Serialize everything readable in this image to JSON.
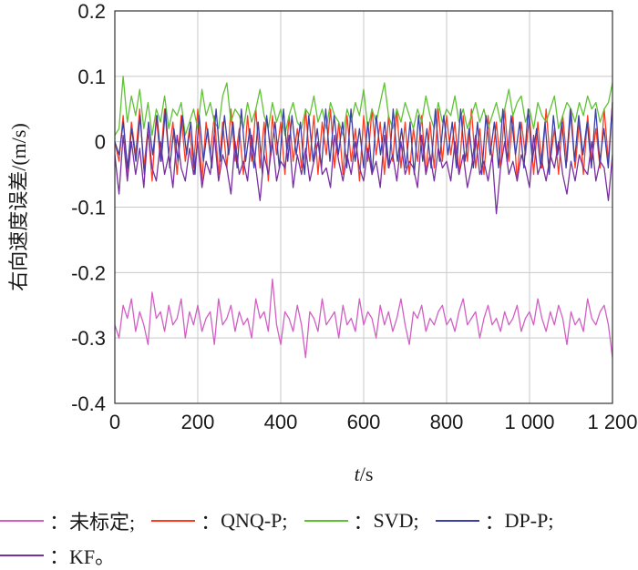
{
  "chart_data": {
    "type": "line",
    "xlabel_italic": "t",
    "xlabel_unit": "/s",
    "ylabel": "右向速度误差/(m/s)",
    "xlim": [
      0,
      1200
    ],
    "ylim": [
      -0.4,
      0.2
    ],
    "xticks": [
      0,
      200,
      400,
      600,
      800,
      1000,
      1200
    ],
    "xtick_labels": [
      "0",
      "200",
      "400",
      "600",
      "800",
      "1 000",
      "1 200"
    ],
    "yticks": [
      -0.4,
      -0.3,
      -0.2,
      -0.1,
      0,
      0.1,
      0.2
    ],
    "ytick_labels": [
      "-0.4",
      "-0.3",
      "-0.2",
      "-0.1",
      "0",
      "0.1",
      "0.2"
    ],
    "grid": true,
    "legend_position": "bottom",
    "series": [
      {
        "name": "未标定",
        "color": "#d15fc4",
        "values": [
          -0.28,
          -0.3,
          -0.25,
          -0.27,
          -0.24,
          -0.29,
          -0.26,
          -0.28,
          -0.31,
          -0.23,
          -0.27,
          -0.26,
          -0.29,
          -0.25,
          -0.28,
          -0.27,
          -0.24,
          -0.3,
          -0.26,
          -0.28,
          -0.25,
          -0.29,
          -0.27,
          -0.26,
          -0.31,
          -0.24,
          -0.28,
          -0.27,
          -0.25,
          -0.29,
          -0.26,
          -0.28,
          -0.27,
          -0.3,
          -0.24,
          -0.27,
          -0.26,
          -0.29,
          -0.21,
          -0.28,
          -0.31,
          -0.26,
          -0.27,
          -0.29,
          -0.25,
          -0.28,
          -0.33,
          -0.26,
          -0.27,
          -0.29,
          -0.24,
          -0.28,
          -0.27,
          -0.26,
          -0.3,
          -0.25,
          -0.28,
          -0.27,
          -0.29,
          -0.24,
          -0.28,
          -0.26,
          -0.27,
          -0.3,
          -0.25,
          -0.28,
          -0.26,
          -0.29,
          -0.27,
          -0.24,
          -0.28,
          -0.31,
          -0.26,
          -0.27,
          -0.25,
          -0.29,
          -0.27,
          -0.28,
          -0.26,
          -0.25,
          -0.28,
          -0.27,
          -0.29,
          -0.26,
          -0.24,
          -0.28,
          -0.27,
          -0.26,
          -0.3,
          -0.27,
          -0.25,
          -0.28,
          -0.27,
          -0.29,
          -0.26,
          -0.28,
          -0.27,
          -0.25,
          -0.29,
          -0.27,
          -0.26,
          -0.28,
          -0.24,
          -0.27,
          -0.29,
          -0.26,
          -0.28,
          -0.25,
          -0.27,
          -0.31,
          -0.26,
          -0.28,
          -0.27,
          -0.29,
          -0.24,
          -0.27,
          -0.28,
          -0.26,
          -0.25,
          -0.28,
          -0.33
        ]
      },
      {
        "name": "QNQ-P",
        "color": "#ff3b1f",
        "values": [
          0.0,
          -0.03,
          0.04,
          -0.05,
          0.03,
          -0.02,
          0.05,
          -0.04,
          0.02,
          -0.06,
          0.04,
          -0.03,
          0.05,
          -0.02,
          0.03,
          -0.05,
          0.04,
          -0.03,
          0.02,
          -0.04,
          0.05,
          -0.06,
          0.03,
          -0.02,
          0.04,
          -0.05,
          0.03,
          -0.04,
          0.05,
          -0.03,
          0.02,
          -0.05,
          0.04,
          -0.03,
          0.05,
          -0.04,
          0.03,
          -0.06,
          0.04,
          -0.02,
          0.03,
          -0.05,
          0.04,
          -0.03,
          0.02,
          -0.04,
          0.05,
          -0.03,
          0.04,
          -0.05,
          0.03,
          -0.02,
          0.05,
          -0.04,
          0.03,
          -0.05,
          0.04,
          -0.03,
          0.02,
          -0.06,
          0.04,
          -0.03,
          0.05,
          -0.02,
          0.03,
          -0.05,
          0.04,
          -0.03,
          0.05,
          -0.04,
          0.03,
          -0.05,
          0.02,
          -0.03,
          0.04,
          -0.05,
          0.03,
          -0.04,
          0.05,
          -0.03,
          0.04,
          -0.02,
          0.03,
          -0.05,
          0.04,
          -0.03,
          0.05,
          -0.04,
          0.02,
          -0.05,
          0.04,
          -0.03,
          0.03,
          -0.04,
          0.05,
          -0.03,
          0.04,
          -0.06,
          0.03,
          -0.02,
          0.04,
          -0.05,
          0.03,
          -0.04,
          0.05,
          -0.03,
          0.02,
          -0.05,
          0.04,
          -0.03,
          0.05,
          -0.04,
          0.03,
          -0.05,
          0.04,
          -0.03,
          0.02,
          -0.04,
          0.05,
          -0.03,
          0.06
        ]
      },
      {
        "name": "SVD",
        "color": "#5fc234",
        "values": [
          0.01,
          0.02,
          0.1,
          0.03,
          0.07,
          0.04,
          0.08,
          0.02,
          0.06,
          0.01,
          0.05,
          0.03,
          0.07,
          0.02,
          0.05,
          0.04,
          0.06,
          0.01,
          0.03,
          0.05,
          0.02,
          0.08,
          0.04,
          0.06,
          0.03,
          0.02,
          0.07,
          0.09,
          0.03,
          0.05,
          0.04,
          0.02,
          0.06,
          0.03,
          0.05,
          0.08,
          0.04,
          0.02,
          0.06,
          0.03,
          0.05,
          0.01,
          0.04,
          0.06,
          0.03,
          0.02,
          0.05,
          0.04,
          0.07,
          0.03,
          0.05,
          0.02,
          0.06,
          0.04,
          0.03,
          0.01,
          0.05,
          0.03,
          0.06,
          0.04,
          0.08,
          0.02,
          0.05,
          0.03,
          0.06,
          0.09,
          0.04,
          0.02,
          0.05,
          0.03,
          0.06,
          0.04,
          0.02,
          0.05,
          0.03,
          0.07,
          0.04,
          0.02,
          0.06,
          0.03,
          0.05,
          0.04,
          0.07,
          0.03,
          0.05,
          0.02,
          0.04,
          0.06,
          0.03,
          0.05,
          0.02,
          0.04,
          0.06,
          0.03,
          0.05,
          0.08,
          0.04,
          0.06,
          0.07,
          0.03,
          0.05,
          0.02,
          0.06,
          0.04,
          0.03,
          0.05,
          0.07,
          0.02,
          0.04,
          0.06,
          0.05,
          0.03,
          0.06,
          0.04,
          0.07,
          0.05,
          0.06,
          0.03,
          0.05,
          0.06,
          0.09
        ]
      },
      {
        "name": "DP-P",
        "color": "#3b3fa8",
        "values": [
          0.0,
          -0.02,
          0.03,
          -0.04,
          0.02,
          -0.03,
          0.04,
          -0.05,
          0.03,
          -0.02,
          0.04,
          -0.03,
          0.05,
          -0.04,
          0.02,
          -0.03,
          0.04,
          -0.02,
          0.03,
          -0.05,
          0.04,
          -0.03,
          0.02,
          -0.04,
          0.05,
          -0.03,
          0.04,
          -0.02,
          0.03,
          -0.04,
          0.05,
          -0.03,
          0.02,
          -0.04,
          0.03,
          -0.05,
          0.04,
          -0.02,
          0.03,
          -0.04,
          0.05,
          -0.03,
          0.04,
          -0.02,
          0.03,
          -0.05,
          0.04,
          -0.03,
          0.02,
          -0.04,
          0.05,
          -0.03,
          0.04,
          -0.02,
          0.03,
          -0.04,
          0.05,
          -0.03,
          0.02,
          -0.04,
          0.03,
          -0.05,
          0.04,
          -0.02,
          0.03,
          -0.04,
          0.05,
          -0.03,
          0.02,
          -0.04,
          0.03,
          -0.05,
          0.04,
          -0.03,
          0.02,
          -0.04,
          0.05,
          -0.03,
          0.04,
          -0.02,
          0.03,
          -0.04,
          0.05,
          -0.03,
          0.02,
          -0.04,
          0.03,
          -0.05,
          0.04,
          -0.02,
          0.03,
          -0.04,
          0.05,
          -0.03,
          0.04,
          -0.02,
          0.03,
          -0.04,
          0.05,
          -0.03,
          0.02,
          -0.04,
          0.03,
          -0.05,
          0.04,
          -0.02,
          0.03,
          -0.04,
          0.05,
          -0.03,
          0.04,
          -0.02,
          0.03,
          -0.04,
          0.05,
          -0.03,
          0.02,
          -0.04,
          0.06
        ]
      },
      {
        "name": "KF",
        "color": "#7a2fa0",
        "values": [
          -0.02,
          -0.08,
          0.01,
          -0.06,
          0.0,
          -0.05,
          -0.01,
          -0.07,
          0.02,
          -0.04,
          -0.06,
          0.0,
          -0.05,
          -0.02,
          -0.07,
          0.01,
          -0.04,
          -0.06,
          -0.01,
          -0.05,
          0.0,
          -0.07,
          -0.03,
          -0.05,
          0.01,
          -0.06,
          -0.02,
          -0.04,
          -0.08,
          0.0,
          -0.05,
          -0.03,
          -0.06,
          0.01,
          -0.04,
          -0.09,
          -0.02,
          -0.05,
          0.0,
          -0.06,
          -0.03,
          -0.04,
          0.01,
          -0.07,
          -0.02,
          -0.05,
          -0.01,
          -0.06,
          -0.03,
          0.0,
          -0.05,
          -0.04,
          -0.07,
          0.01,
          -0.03,
          -0.06,
          -0.02,
          -0.05,
          0.0,
          -0.04,
          -0.06,
          -0.01,
          -0.05,
          -0.03,
          -0.07,
          0.01,
          -0.04,
          -0.02,
          -0.06,
          0.0,
          -0.05,
          -0.03,
          -0.04,
          -0.07,
          0.01,
          -0.05,
          -0.02,
          -0.06,
          -0.01,
          -0.04,
          -0.03,
          -0.06,
          0.0,
          -0.05,
          -0.02,
          -0.07,
          -0.04,
          0.01,
          -0.05,
          -0.03,
          -0.06,
          -0.02,
          -0.11,
          -0.04,
          0.0,
          -0.05,
          -0.03,
          -0.06,
          -0.02,
          -0.04,
          -0.07,
          0.01,
          -0.05,
          -0.03,
          -0.06,
          -0.02,
          -0.04,
          0.0,
          -0.05,
          -0.08,
          -0.03,
          -0.06,
          -0.02,
          -0.04,
          -0.05,
          0.0,
          -0.06,
          -0.03,
          -0.04,
          -0.09,
          -0.02
        ]
      }
    ]
  },
  "legend": {
    "separator": "：",
    "items": [
      {
        "label": "未标定;",
        "color": "#d15fc4",
        "icon": "line-swatch"
      },
      {
        "label": "QNQ-P;",
        "color": "#ff3b1f",
        "icon": "line-swatch"
      },
      {
        "label": "SVD;",
        "color": "#5fc234",
        "icon": "line-swatch"
      },
      {
        "label": "DP-P;",
        "color": "#3b3fa8",
        "icon": "line-swatch"
      },
      {
        "label": "KF。",
        "color": "#7a2fa0",
        "icon": "line-swatch"
      }
    ]
  }
}
